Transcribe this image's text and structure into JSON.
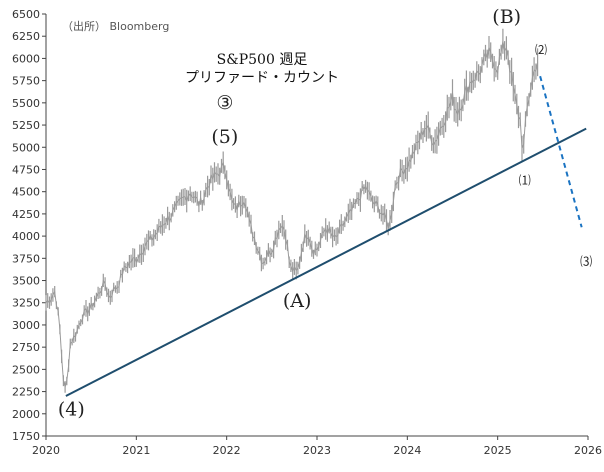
{
  "chart_data": {
    "type": "line",
    "title": "S&P500 週足",
    "subtitle": "プリファード・カウント",
    "source": "（出所） Bloomberg",
    "xlim": [
      2020.0,
      2026.0
    ],
    "ylim": [
      1750,
      6500
    ],
    "x_ticks": [
      2020,
      2021,
      2022,
      2023,
      2024,
      2025,
      2026
    ],
    "x_tick_labels": [
      "2020",
      "2021",
      "2022",
      "2023",
      "2024",
      "2025",
      "2026"
    ],
    "y_ticks": [
      1750,
      2000,
      2250,
      2500,
      2750,
      3000,
      3250,
      3500,
      3750,
      4000,
      4250,
      4500,
      4750,
      5000,
      5250,
      5500,
      5750,
      6000,
      6250,
      6500
    ],
    "y_tick_labels": [
      "1750",
      "2000",
      "2250",
      "2500",
      "2750",
      "3000",
      "3250",
      "3500",
      "3750",
      "4000",
      "4250",
      "4500",
      "4750",
      "5000",
      "5250",
      "5500",
      "5750",
      "6000",
      "6250",
      "6500"
    ],
    "series": [
      {
        "style": "gray-weekly",
        "x": [
          2020.0,
          2020.05,
          2020.1,
          2020.15,
          2020.19,
          2020.22,
          2020.27,
          2020.33,
          2020.4,
          2020.45,
          2020.5,
          2020.58,
          2020.65,
          2020.7,
          2020.75,
          2020.8,
          2020.85,
          2020.92,
          2021.0,
          2021.1,
          2021.2,
          2021.3,
          2021.4,
          2021.5,
          2021.6,
          2021.7,
          2021.75,
          2021.8,
          2021.9,
          2021.97,
          2022.0,
          2022.05,
          2022.1,
          2022.2,
          2022.25,
          2022.3,
          2022.4,
          2022.45,
          2022.5,
          2022.6,
          2022.65,
          2022.7,
          2022.78,
          2022.85,
          2022.9,
          2022.95,
          2023.0,
          2023.1,
          2023.2,
          2023.3,
          2023.4,
          2023.5,
          2023.55,
          2023.6,
          2023.7,
          2023.8,
          2023.87,
          2023.95,
          2024.0,
          2024.1,
          2024.2,
          2024.25,
          2024.3,
          2024.4,
          2024.5,
          2024.55,
          2024.6,
          2024.7,
          2024.8,
          2024.9,
          2025.0,
          2025.05,
          2025.1,
          2025.15,
          2025.2,
          2025.25,
          2025.28,
          2025.32,
          2025.36,
          2025.4,
          2025.45
        ],
        "y": [
          3250,
          3300,
          3380,
          3000,
          2400,
          2237,
          2800,
          2900,
          3100,
          3150,
          3200,
          3350,
          3480,
          3300,
          3400,
          3450,
          3600,
          3700,
          3750,
          3900,
          4000,
          4150,
          4250,
          4400,
          4500,
          4350,
          4450,
          4600,
          4700,
          4780,
          4700,
          4400,
          4300,
          4450,
          4150,
          4000,
          3700,
          3800,
          3850,
          4150,
          4050,
          3650,
          3580,
          3950,
          4050,
          3850,
          3850,
          4100,
          3950,
          4150,
          4300,
          4500,
          4550,
          4400,
          4300,
          4100,
          4600,
          4750,
          4800,
          5000,
          5250,
          5150,
          5050,
          5300,
          5550,
          5400,
          5500,
          5750,
          5850,
          6050,
          5900,
          6100,
          6150,
          5800,
          5500,
          5300,
          4900,
          5400,
          5650,
          5850,
          6000
        ]
      }
    ],
    "trendline": {
      "x": [
        2020.22,
        2025.98
      ],
      "y": [
        2200,
        5210
      ]
    },
    "forecast": {
      "x": [
        2025.47,
        2025.93
      ],
      "y": [
        5800,
        4100
      ]
    },
    "wave_labels": [
      {
        "text": "③",
        "x": 2021.98,
        "y": 5430,
        "size": "big"
      },
      {
        "text": "(5)",
        "x": 2021.98,
        "y": 5050,
        "size": "big"
      },
      {
        "text": "(4)",
        "x": 2020.28,
        "y": 1980,
        "size": "big"
      },
      {
        "text": "(A)",
        "x": 2022.78,
        "y": 3200,
        "size": "big"
      },
      {
        "text": "(B)",
        "x": 2025.1,
        "y": 6400,
        "size": "big"
      },
      {
        "text": "⑴",
        "x": 2025.3,
        "y": 4580,
        "size": "small"
      },
      {
        "text": "⑵",
        "x": 2025.48,
        "y": 6050,
        "size": "small"
      },
      {
        "text": "⑶",
        "x": 2025.98,
        "y": 3670,
        "size": "small"
      }
    ],
    "colors": {
      "price": "#9a9a9a",
      "trendline": "#1f4e6e",
      "forecast": "#1a73c2",
      "axis": "#444444"
    }
  }
}
